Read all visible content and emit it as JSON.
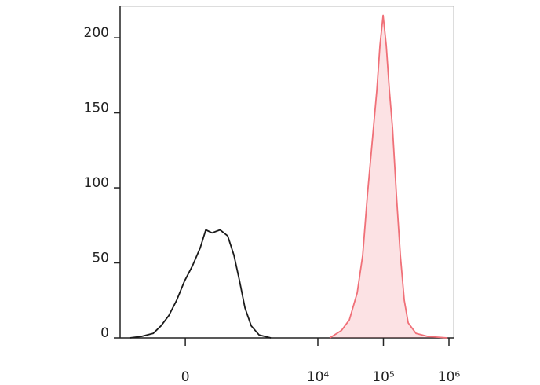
{
  "chart_data": {
    "type": "area",
    "xscale": "biexponential",
    "xlim": [
      -930,
      1180000
    ],
    "xticks": [
      0,
      {
        "value": 10000,
        "label": "10⁴"
      },
      {
        "value": 100000,
        "label": "10⁵"
      },
      {
        "value": 1000000,
        "label": "10⁶"
      }
    ],
    "ylim": [
      0,
      221
    ],
    "yticks": [
      0,
      50,
      100,
      150,
      200
    ],
    "series": [
      {
        "color": "#1a1a1a",
        "fill": false,
        "x": [
          -661,
          -425,
          -264,
          -183,
          -116,
          -59,
          -5,
          48,
          104,
          149,
          206,
          294,
          399,
          508,
          624,
          761,
          954,
          1262,
          1915
        ],
        "values": [
          0,
          1,
          3,
          8,
          15,
          25,
          38,
          48,
          60,
          72,
          70,
          72,
          68,
          55,
          38,
          20,
          8,
          2,
          0
        ]
      },
      {
        "color": "#f07078",
        "fill": true,
        "x": [
          15180,
          22970,
          30240,
          39840,
          48330,
          57060,
          67310,
          79440,
          88680,
          99000,
          110500,
          123400,
          137700,
          158200,
          181600,
          208400,
          239300,
          315400,
          476800,
          950600
        ],
        "values": [
          0,
          5,
          12,
          30,
          55,
          95,
          130,
          165,
          195,
          215,
          195,
          165,
          140,
          95,
          55,
          25,
          10,
          3,
          1,
          0
        ]
      }
    ]
  }
}
